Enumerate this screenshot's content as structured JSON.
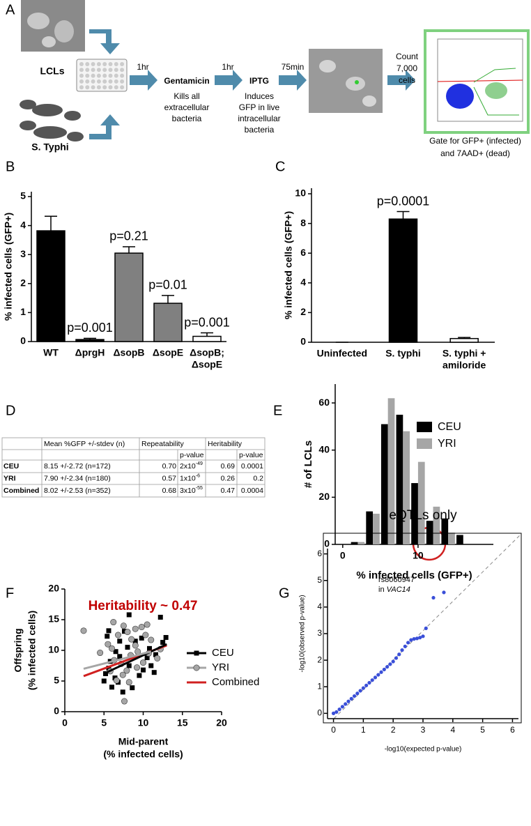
{
  "panel_labels": [
    "A",
    "B",
    "C",
    "D",
    "E",
    "F",
    "G"
  ],
  "panel_a": {
    "lcl_label": "LCLs",
    "bacteria_label": "S. Typhi",
    "steps": [
      {
        "time": "1hr",
        "name": "Gentamicin",
        "desc": [
          "Kills all",
          "extracellular",
          "bacteria"
        ]
      },
      {
        "time": "1hr",
        "name": "IPTG",
        "desc": [
          "Induces",
          "GFP in live",
          "intracellular",
          "bacteria"
        ]
      }
    ],
    "time3": "75min",
    "count": [
      "Count",
      "7,000",
      "cells"
    ],
    "gate": [
      "Gate for GFP+ (infected)",
      "and 7AAD+ (dead)"
    ]
  },
  "chart_data": [
    {
      "type": "bar",
      "ylabel": "% infected cells (GFP+)",
      "categories": [
        [
          "WT"
        ],
        [
          "ΔprgH"
        ],
        [
          "ΔsopB"
        ],
        [
          "ΔsopE"
        ],
        [
          "ΔsopB;",
          "ΔsopE"
        ]
      ],
      "values": [
        3.82,
        0.07,
        3.05,
        1.32,
        0.18
      ],
      "errors": [
        0.5,
        0.04,
        0.22,
        0.27,
        0.12
      ],
      "colors": [
        "#000000",
        "#000000",
        "#808080",
        "#808080",
        "#ffffff"
      ],
      "annotations": [
        null,
        "p=0.001",
        "p=0.21",
        "p=0.01",
        "p=0.001"
      ],
      "ylim": [
        0,
        5
      ],
      "yticks": [
        0,
        1,
        2,
        3,
        4,
        5
      ]
    },
    {
      "type": "bar",
      "ylabel": "% infected cells (GFP+)",
      "categories": [
        [
          "Uninfected"
        ],
        [
          "S. typhi"
        ],
        [
          "S. typhi +",
          "amiloride"
        ]
      ],
      "values": [
        0,
        8.3,
        0.25
      ],
      "errors": [
        0,
        0.5,
        0.07
      ],
      "colors": [
        "#000000",
        "#000000",
        "#ffffff"
      ],
      "annotations": [
        null,
        "p=0.0001",
        null
      ],
      "ylim": [
        0,
        10
      ],
      "yticks": [
        0,
        2,
        4,
        6,
        8,
        10
      ]
    },
    {
      "type": "histogram",
      "xlabel": "% infected cells (GFP+)",
      "ylabel": "# of LCLs",
      "x": [
        2,
        4,
        6,
        8,
        10,
        12,
        14,
        16
      ],
      "series": [
        {
          "name": "CEU",
          "color": "#000000",
          "values": [
            1,
            14,
            51,
            55,
            26,
            10,
            11,
            4
          ]
        },
        {
          "name": "YRI",
          "color": "#a6a6a6",
          "values": [
            1,
            13,
            62,
            48,
            35,
            16,
            5,
            0
          ]
        }
      ],
      "xlim": [
        -1,
        20
      ],
      "xticks": [
        0,
        10
      ],
      "ylim": [
        0,
        68
      ],
      "yticks": [
        0,
        20,
        40,
        60
      ],
      "legend": "upper right"
    },
    {
      "type": "scatter",
      "title": "Heritability ~ 0.47",
      "title_color": "#c00000",
      "xlabel": [
        "Mid-parent",
        "(% infected cells)"
      ],
      "ylabel": [
        "Offspring",
        "(% infected cells)"
      ],
      "series": [
        {
          "name": "CEU",
          "color": "#000000",
          "marker": "square",
          "x": [
            8.2,
            12.2,
            12.9,
            5.6,
            5.4,
            6.5,
            7,
            5.8,
            5.2,
            5.6,
            6.4,
            5,
            6,
            7.4,
            6.8,
            8.6,
            9.5,
            10,
            11,
            10.5,
            11.6,
            12.5,
            8,
            9,
            9.8,
            7.6,
            10.8,
            11.4,
            8.2,
            7
          ],
          "values": [
            15.8,
            15.4,
            12.1,
            13.2,
            12.3,
            9.8,
            9,
            8.2,
            6.2,
            7.1,
            5.5,
            5,
            4,
            3.2,
            4.8,
            3.9,
            5.9,
            6.8,
            7.5,
            8.8,
            9.3,
            11.3,
            10.5,
            11.5,
            12,
            13.1,
            10.3,
            6.4,
            7.5,
            11.5
          ]
        },
        {
          "name": "YRI",
          "color": "#a6a6a6",
          "marker": "circle",
          "x": [
            2.4,
            4.5,
            5.5,
            6,
            6.8,
            7.5,
            8,
            8.5,
            9,
            9.8,
            10.3,
            11,
            6.3,
            7.2,
            7.9,
            8.4,
            9.3,
            10,
            10.7,
            7.4,
            6.6,
            8.2,
            7.6,
            9.2,
            5.8,
            11.8,
            12.2,
            9,
            6.2,
            10.5
          ],
          "values": [
            13.2,
            9.6,
            11,
            10.3,
            12.5,
            14,
            13,
            11.8,
            13.5,
            13.8,
            12.5,
            11.7,
            8.4,
            7.8,
            6.7,
            9.2,
            9.8,
            8,
            9.5,
            6,
            5.1,
            4.8,
            1.7,
            7.2,
            6.6,
            8.7,
            10.2,
            10.8,
            14.6,
            14.2
          ]
        },
        {
          "name": "Combined",
          "color": "#d02020",
          "marker": "line",
          "x": [
            2.4,
            13
          ],
          "values": [
            5.8,
            10.8
          ]
        },
        {
          "color": "#000000",
          "marker": "line",
          "x": [
            5,
            13
          ],
          "values": [
            6.2,
            11
          ]
        },
        {
          "color": "#a6a6a6",
          "marker": "line",
          "x": [
            2.4,
            11
          ],
          "values": [
            7,
            9.8
          ]
        }
      ],
      "legend_order": [
        0,
        1,
        2
      ],
      "xlim": [
        0,
        20
      ],
      "xticks": [
        0,
        5,
        10,
        15,
        20
      ],
      "ylim": [
        0,
        20
      ],
      "yticks": [
        0,
        5,
        10,
        15,
        20
      ]
    },
    {
      "type": "scatter",
      "title": "eQTLs only",
      "xlabel": [
        "-log10(expected p-value)"
      ],
      "ylabel": [
        "-log10(observed p-value)"
      ],
      "annotation": {
        "line1": "rs8060947",
        "line2_prefix": "in",
        "line2_gene": "VAC14"
      },
      "series": [
        {
          "color": "#3a4fd8",
          "marker": "dot",
          "x": [
            0,
            0.1,
            0.2,
            0.3,
            0.4,
            0.5,
            0.6,
            0.7,
            0.8,
            0.9,
            1.0,
            1.1,
            1.2,
            1.3,
            1.4,
            1.5,
            1.6,
            1.7,
            1.8,
            1.9,
            2.0,
            2.1,
            2.2,
            2.3,
            2.4,
            2.5,
            2.6,
            2.7,
            2.8,
            2.9,
            3.0,
            3.1,
            3.35,
            3.7
          ],
          "values": [
            0,
            0.05,
            0.15,
            0.25,
            0.35,
            0.45,
            0.55,
            0.65,
            0.75,
            0.85,
            0.95,
            1.05,
            1.15,
            1.25,
            1.35,
            1.45,
            1.55,
            1.65,
            1.75,
            1.85,
            1.95,
            2.08,
            2.22,
            2.38,
            2.52,
            2.66,
            2.76,
            2.8,
            2.82,
            2.85,
            2.9,
            3.2,
            4.35,
            4.55
          ]
        }
      ],
      "xlim": [
        -0.2,
        6.2
      ],
      "xticks": [
        0,
        1,
        2,
        3,
        4,
        5,
        6
      ],
      "ylim": [
        -0.2,
        6.2
      ],
      "yticks": [
        0,
        1,
        2,
        3,
        4,
        5,
        6
      ]
    }
  ],
  "table": {
    "header": [
      "Mean %GFP +/-stdev (n)",
      "Repeatability",
      "Heritability"
    ],
    "subheader": [
      "p-value",
      "p-value"
    ],
    "rows": [
      {
        "group": "CEU",
        "mean": "8.15 +/-2.72 (n=172)",
        "repeatability": "0.70",
        "rep_p": {
          "base": "2x10",
          "exp": "-49"
        },
        "heritability": "0.69",
        "her_p": "0.0001"
      },
      {
        "group": "YRI",
        "mean": "7.90 +/-2.34 (n=180)",
        "repeatability": "0.57",
        "rep_p": {
          "base": "1x10",
          "exp": "-6"
        },
        "heritability": "0.26",
        "her_p": "0.2"
      },
      {
        "group": "Combined",
        "mean": "8.02 +/-2.53 (n=352)",
        "repeatability": "0.68",
        "rep_p": {
          "base": "3x10",
          "exp": "-55"
        },
        "heritability": "0.47",
        "her_p": "0.0004"
      }
    ]
  }
}
